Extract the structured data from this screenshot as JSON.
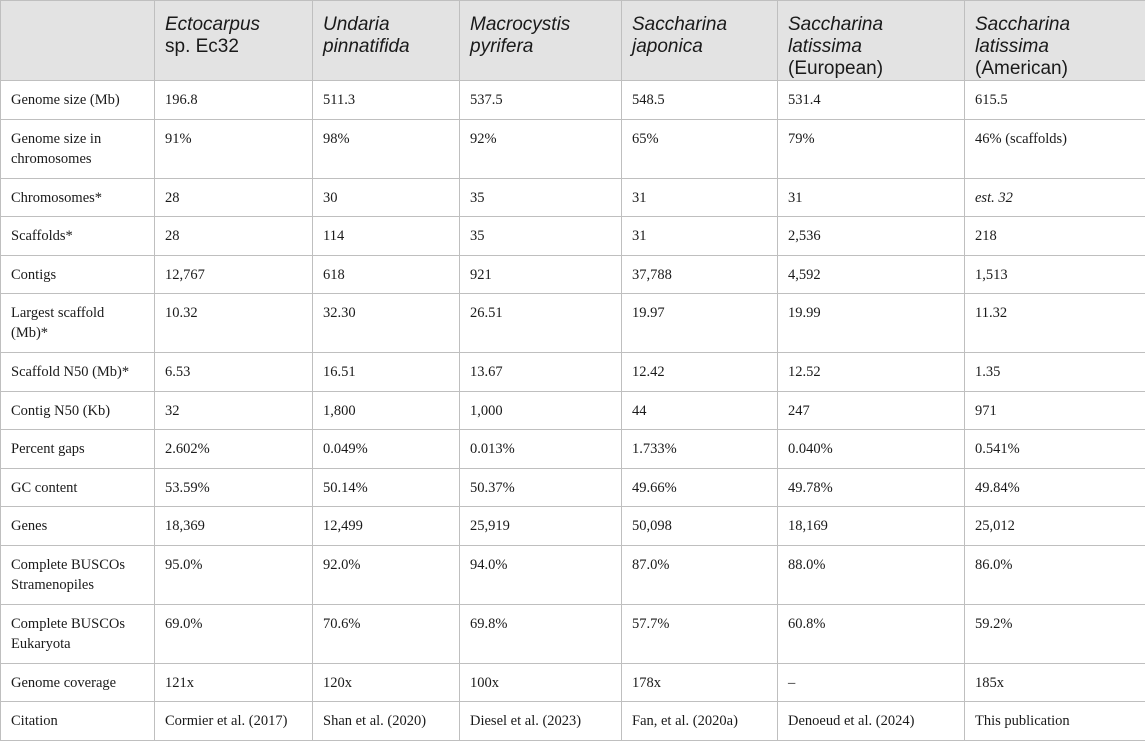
{
  "table": {
    "columns": [
      {
        "italic": "",
        "plain": ""
      },
      {
        "italic": "Ectocarpus",
        "plain": "sp. Ec32"
      },
      {
        "italic": "Undaria pinnatifida",
        "plain": ""
      },
      {
        "italic": "Macrocystis pyrifera",
        "plain": ""
      },
      {
        "italic": "Saccharina japonica",
        "plain": ""
      },
      {
        "italic": "Saccharina latissima",
        "plain": "(European)"
      },
      {
        "italic": "Saccharina latissima",
        "plain": "(American)"
      }
    ],
    "rows": [
      {
        "label": "Genome size (Mb)",
        "values": [
          "196.8",
          "511.3",
          "537.5",
          "548.5",
          "531.4",
          "615.5"
        ]
      },
      {
        "label": "Genome size in chromosomes",
        "values": [
          "91%",
          "98%",
          "92%",
          "65%",
          "79%",
          "46% (scaffolds)"
        ]
      },
      {
        "label": "Chromosomes*",
        "values": [
          "28",
          "30",
          "35",
          "31",
          "31",
          "est. 32"
        ]
      },
      {
        "label": "Scaffolds*",
        "values": [
          "28",
          "114",
          "35",
          "31",
          "2,536",
          "218"
        ]
      },
      {
        "label": "Contigs",
        "values": [
          "12,767",
          "618",
          "921",
          "37,788",
          "4,592",
          "1,513"
        ]
      },
      {
        "label": "Largest scaffold (Mb)*",
        "values": [
          "10.32",
          "32.30",
          "26.51",
          "19.97",
          "19.99",
          "11.32"
        ]
      },
      {
        "label": "Scaffold N50 (Mb)*",
        "values": [
          "6.53",
          "16.51",
          "13.67",
          "12.42",
          "12.52",
          "1.35"
        ]
      },
      {
        "label": "Contig N50 (Kb)",
        "values": [
          "32",
          "1,800",
          "1,000",
          "44",
          "247",
          "971"
        ]
      },
      {
        "label": "Percent gaps",
        "values": [
          "2.602%",
          "0.049%",
          "0.013%",
          "1.733%",
          "0.040%",
          "0.541%"
        ]
      },
      {
        "label": "GC content",
        "values": [
          "53.59%",
          "50.14%",
          "50.37%",
          "49.66%",
          "49.78%",
          "49.84%"
        ]
      },
      {
        "label": "Genes",
        "values": [
          "18,369",
          "12,499",
          "25,919",
          "50,098",
          "18,169",
          "25,012"
        ]
      },
      {
        "label": "Complete BUSCOs Stramenopiles",
        "values": [
          "95.0%",
          "92.0%",
          "94.0%",
          "87.0%",
          "88.0%",
          "86.0%"
        ]
      },
      {
        "label": "Complete BUSCOs Eukaryota",
        "values": [
          "69.0%",
          "70.6%",
          "69.8%",
          "57.7%",
          "60.8%",
          "59.2%"
        ]
      },
      {
        "label": "Genome coverage",
        "values": [
          "121x",
          "120x",
          "100x",
          "178x",
          "–",
          "185x"
        ]
      },
      {
        "label": "Citation",
        "values": [
          "Cormier et al. (2017)",
          "Shan et al. (2020)",
          "Diesel et al. (2023)",
          "Fan, et al. (2020a)",
          "Denoeud et al. (2024)",
          "This publication"
        ]
      }
    ]
  }
}
